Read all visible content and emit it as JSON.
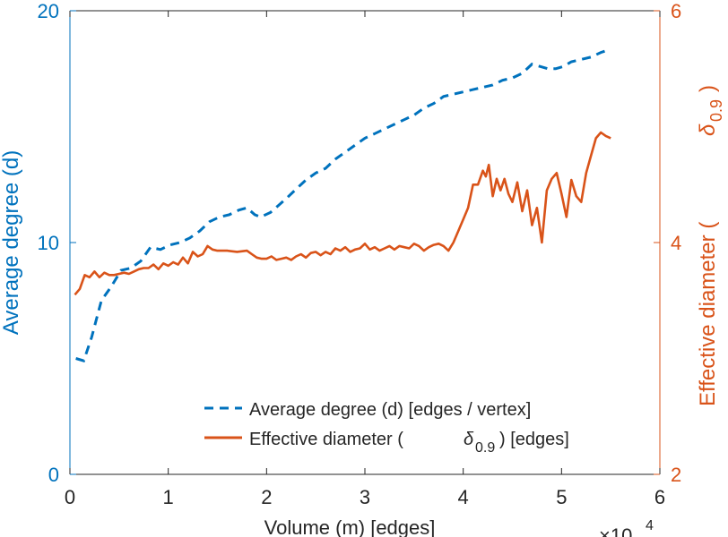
{
  "chart_data": {
    "type": "line",
    "xlabel": "Volume (m) [edges]",
    "x_exponent": "×10",
    "x_exponent_power": "4",
    "x_ticks": [
      0,
      1,
      2,
      3,
      4,
      5,
      6
    ],
    "xlim": [
      0,
      6
    ],
    "left_axis": {
      "label": "Average degree (d)",
      "ticks": [
        0,
        10,
        20
      ],
      "ylim": [
        0,
        20
      ],
      "color": "#0072bd"
    },
    "right_axis": {
      "label": "Effective diameter (",
      "label_symbol": "δ",
      "label_sub": "0.9",
      "label_close": ")",
      "ticks": [
        2,
        4,
        6
      ],
      "ylim": [
        2,
        6
      ],
      "color": "#d95319"
    },
    "legend": {
      "position": "bottom-right",
      "entries": [
        {
          "text": "Average degree (d) [edges / vertex]"
        },
        {
          "text": "Effective diameter (",
          "symbol": "δ",
          "sub": "0.9",
          "tail": ") [edges]"
        }
      ]
    },
    "series": [
      {
        "axis": "left",
        "style": "dashed",
        "color": "#0072bd",
        "x": [
          0.06,
          0.14,
          0.22,
          0.32,
          0.42,
          0.52,
          0.62,
          0.72,
          0.82,
          0.92,
          1.02,
          1.12,
          1.22,
          1.32,
          1.42,
          1.52,
          1.62,
          1.72,
          1.8,
          1.88,
          1.94,
          2.04,
          2.12,
          2.2,
          2.3,
          2.4,
          2.5,
          2.6,
          2.7,
          2.8,
          2.9,
          3.0,
          3.1,
          3.2,
          3.3,
          3.4,
          3.5,
          3.6,
          3.7,
          3.8,
          3.9,
          4.0,
          4.1,
          4.2,
          4.3,
          4.4,
          4.5,
          4.6,
          4.7,
          4.78,
          4.86,
          4.94,
          5.02,
          5.1,
          5.2,
          5.3,
          5.4,
          5.47
        ],
        "values": [
          5.0,
          4.9,
          5.9,
          7.5,
          8.1,
          8.8,
          8.9,
          9.2,
          9.8,
          9.7,
          9.9,
          10.0,
          10.2,
          10.5,
          10.9,
          11.1,
          11.2,
          11.4,
          11.5,
          11.2,
          11.1,
          11.3,
          11.6,
          11.9,
          12.3,
          12.7,
          13.0,
          13.2,
          13.6,
          13.9,
          14.2,
          14.5,
          14.7,
          14.9,
          15.1,
          15.3,
          15.5,
          15.8,
          16.0,
          16.3,
          16.4,
          16.5,
          16.6,
          16.7,
          16.8,
          17.0,
          17.1,
          17.3,
          17.7,
          17.6,
          17.5,
          17.5,
          17.6,
          17.8,
          17.9,
          18.0,
          18.2,
          18.3
        ]
      },
      {
        "axis": "right",
        "style": "solid",
        "color": "#d95319",
        "x": [
          0.05,
          0.1,
          0.15,
          0.2,
          0.25,
          0.3,
          0.35,
          0.4,
          0.45,
          0.5,
          0.55,
          0.6,
          0.65,
          0.7,
          0.75,
          0.8,
          0.85,
          0.9,
          0.95,
          1.0,
          1.05,
          1.1,
          1.15,
          1.2,
          1.25,
          1.3,
          1.35,
          1.4,
          1.45,
          1.5,
          1.6,
          1.7,
          1.8,
          1.85,
          1.9,
          1.95,
          2.0,
          2.05,
          2.1,
          2.15,
          2.2,
          2.25,
          2.3,
          2.35,
          2.4,
          2.45,
          2.5,
          2.55,
          2.6,
          2.65,
          2.7,
          2.75,
          2.8,
          2.85,
          2.9,
          2.95,
          3.0,
          3.05,
          3.1,
          3.15,
          3.2,
          3.25,
          3.3,
          3.35,
          3.4,
          3.45,
          3.5,
          3.55,
          3.6,
          3.65,
          3.7,
          3.75,
          3.8,
          3.85,
          3.9,
          3.95,
          4.0,
          4.05,
          4.1,
          4.15,
          4.2,
          4.23,
          4.26,
          4.3,
          4.34,
          4.38,
          4.42,
          4.46,
          4.5,
          4.55,
          4.6,
          4.65,
          4.7,
          4.75,
          4.8,
          4.85,
          4.9,
          4.95,
          5.0,
          5.05,
          5.1,
          5.15,
          5.2,
          5.25,
          5.3,
          5.35,
          5.4,
          5.45,
          5.5
        ],
        "values": [
          3.55,
          3.6,
          3.72,
          3.7,
          3.75,
          3.7,
          3.74,
          3.72,
          3.72,
          3.73,
          3.74,
          3.73,
          3.75,
          3.77,
          3.78,
          3.78,
          3.81,
          3.77,
          3.82,
          3.8,
          3.83,
          3.81,
          3.87,
          3.82,
          3.92,
          3.88,
          3.9,
          3.97,
          3.94,
          3.93,
          3.93,
          3.92,
          3.93,
          3.9,
          3.87,
          3.86,
          3.86,
          3.88,
          3.85,
          3.86,
          3.87,
          3.85,
          3.88,
          3.9,
          3.87,
          3.91,
          3.92,
          3.89,
          3.92,
          3.9,
          3.95,
          3.93,
          3.96,
          3.92,
          3.94,
          3.95,
          3.99,
          3.94,
          3.96,
          3.93,
          3.95,
          3.97,
          3.94,
          3.97,
          3.96,
          3.95,
          3.99,
          3.97,
          3.93,
          3.96,
          3.98,
          3.99,
          3.97,
          3.93,
          4.0,
          4.1,
          4.2,
          4.3,
          4.5,
          4.5,
          4.62,
          4.57,
          4.67,
          4.4,
          4.55,
          4.45,
          4.55,
          4.42,
          4.35,
          4.52,
          4.27,
          4.45,
          4.15,
          4.3,
          4.0,
          4.45,
          4.55,
          4.6,
          4.42,
          4.22,
          4.54,
          4.4,
          4.35,
          4.6,
          4.75,
          4.9,
          4.95,
          4.92,
          4.9
        ]
      }
    ]
  }
}
